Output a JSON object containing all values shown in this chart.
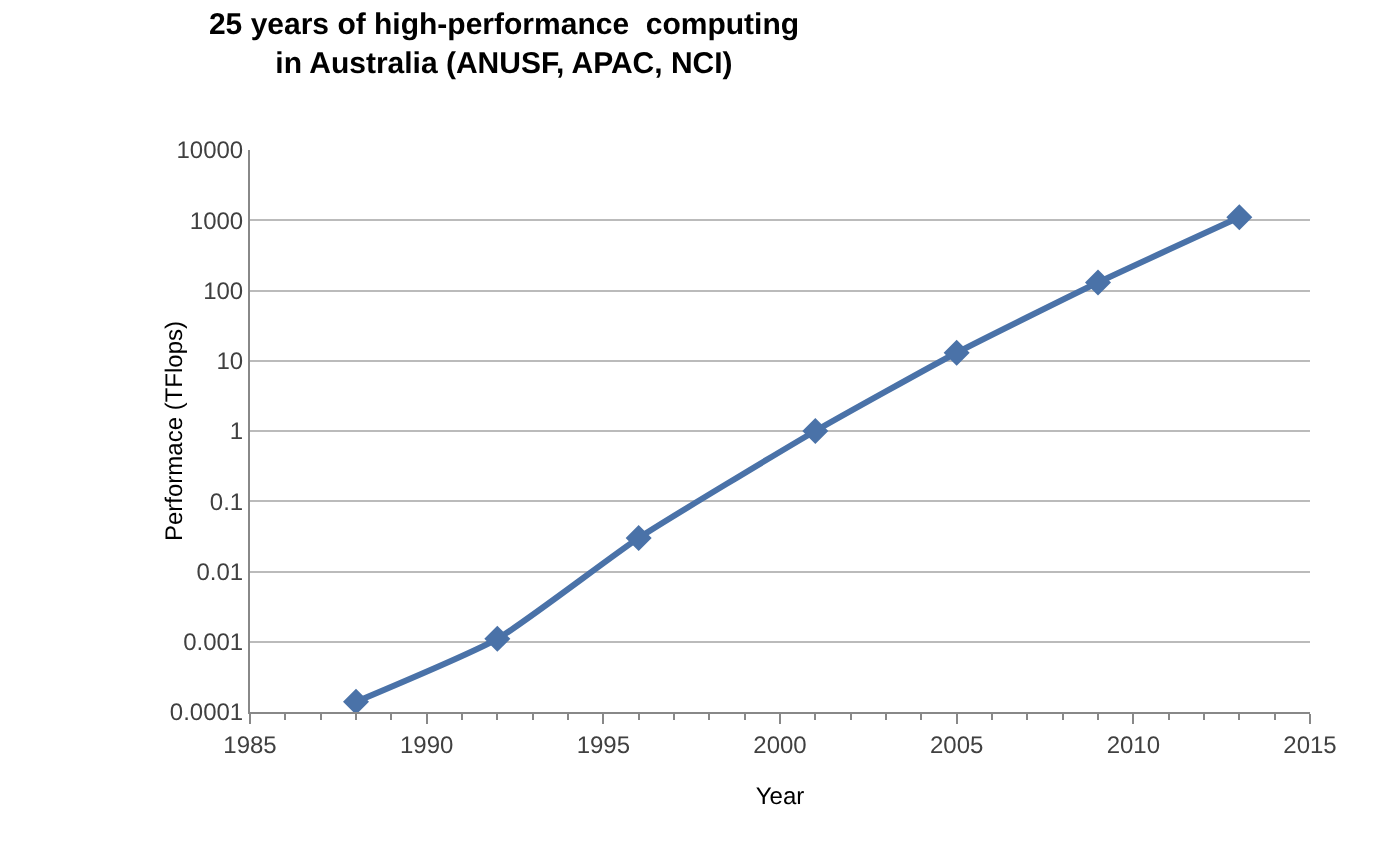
{
  "chart_data": {
    "type": "line",
    "title": "25 years of high-performance  computing\nin Australia (ANUSF, APAC, NCI)",
    "xlabel": "Year",
    "ylabel": "Performace (TFlops)",
    "x": [
      1988,
      1992,
      1996,
      2001,
      2005,
      2009,
      2013
    ],
    "series": [
      {
        "color": "#4a72a8",
        "values": [
          0.00014,
          0.0011,
          0.03,
          1,
          13,
          130,
          1100
        ]
      }
    ],
    "log": true,
    "xlim": [
      1985,
      2015
    ],
    "xticks": [
      1985,
      1990,
      1995,
      2000,
      2005,
      2010,
      2015
    ],
    "ylim": [
      0.0001,
      10000
    ],
    "yticks": [
      0.0001,
      0.001,
      0.01,
      0.1,
      1,
      10,
      100,
      1000,
      10000
    ],
    "grid": "y",
    "marker": "diamond",
    "line_style": "solid"
  }
}
